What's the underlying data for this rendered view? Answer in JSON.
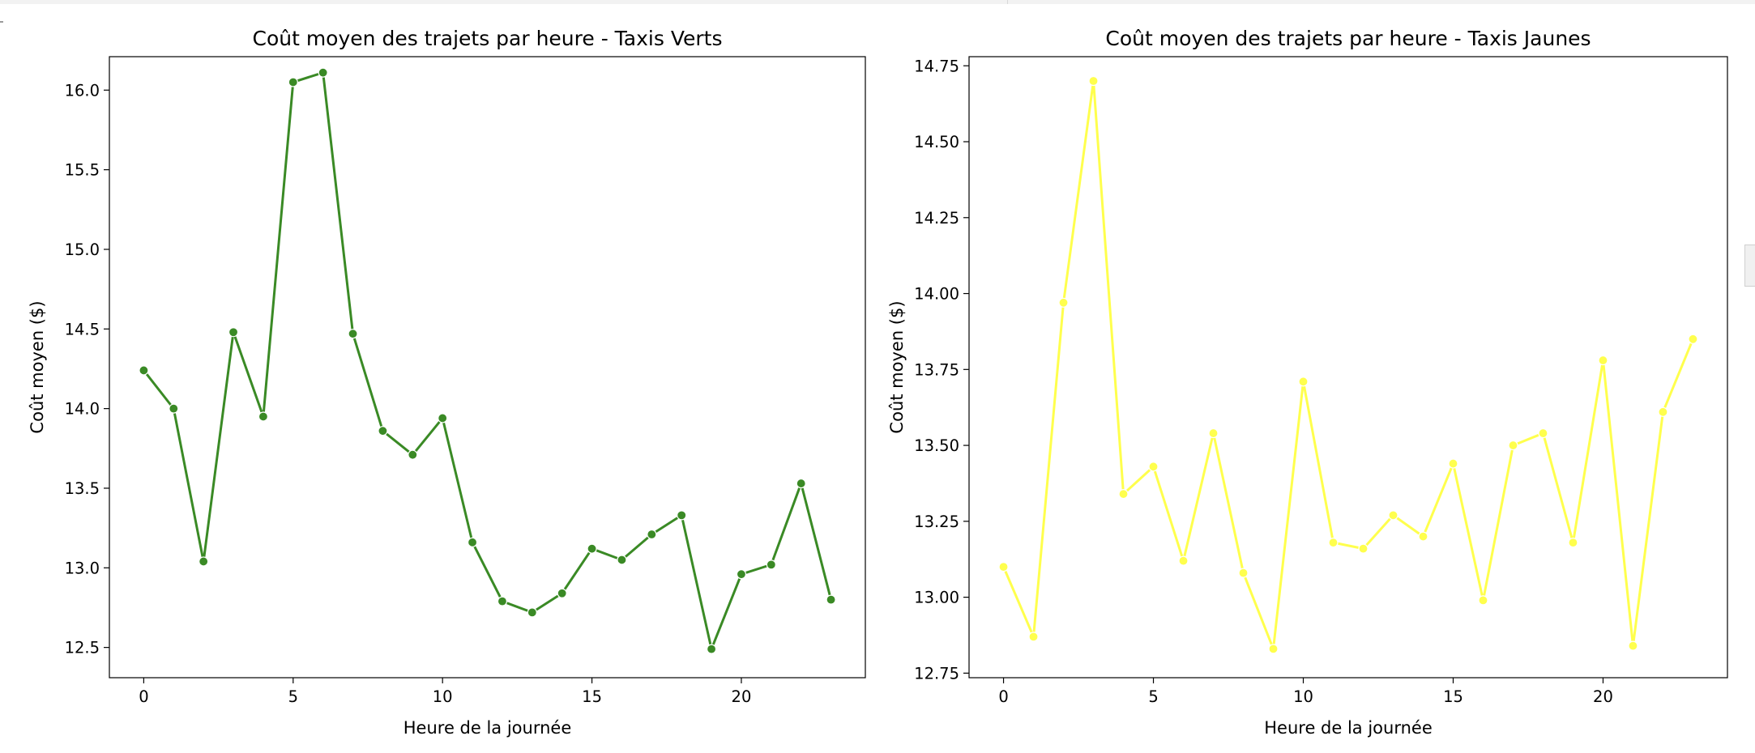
{
  "chart_data": [
    {
      "type": "line",
      "title": "Coût moyen des trajets par heure - Taxis Verts",
      "xlabel": "Heure de la journée",
      "ylabel": "Coût moyen ($)",
      "color": "#3a8a25",
      "marker": "circle",
      "grid": false,
      "xlim": [
        -1.15,
        24.15
      ],
      "ylim": [
        12.31,
        16.21
      ],
      "xticks": [
        0,
        5,
        10,
        15,
        20
      ],
      "xtick_labels": [
        "0",
        "5",
        "10",
        "15",
        "20"
      ],
      "yticks": [
        12.5,
        13.0,
        13.5,
        14.0,
        14.5,
        15.0,
        15.5,
        16.0
      ],
      "ytick_labels": [
        "12.5",
        "13.0",
        "13.5",
        "14.0",
        "14.5",
        "15.0",
        "15.5",
        "16.0"
      ],
      "x": [
        0,
        1,
        2,
        3,
        4,
        5,
        6,
        7,
        8,
        9,
        10,
        11,
        12,
        13,
        14,
        15,
        16,
        17,
        18,
        19,
        20,
        21,
        22,
        23
      ],
      "series": [
        {
          "values": [
            14.24,
            14.0,
            13.04,
            14.48,
            13.95,
            16.05,
            16.11,
            14.47,
            13.86,
            13.71,
            13.94,
            13.16,
            12.79,
            12.72,
            12.84,
            13.12,
            13.05,
            13.21,
            13.33,
            12.49,
            12.96,
            13.02,
            13.53,
            12.8
          ]
        }
      ]
    },
    {
      "type": "line",
      "title": "Coût moyen des trajets par heure - Taxis Jaunes",
      "xlabel": "Heure de la journée",
      "ylabel": "Coût moyen ($)",
      "color": "#ffff4d",
      "marker": "circle",
      "grid": false,
      "xlim": [
        -1.15,
        24.15
      ],
      "ylim": [
        12.735,
        14.78
      ],
      "xticks": [
        0,
        5,
        10,
        15,
        20
      ],
      "xtick_labels": [
        "0",
        "5",
        "10",
        "15",
        "20"
      ],
      "yticks": [
        12.75,
        13.0,
        13.25,
        13.5,
        13.75,
        14.0,
        14.25,
        14.5,
        14.75
      ],
      "ytick_labels": [
        "12.75",
        "13.00",
        "13.25",
        "13.50",
        "13.75",
        "14.00",
        "14.25",
        "14.50",
        "14.75"
      ],
      "x": [
        0,
        1,
        2,
        3,
        4,
        5,
        6,
        7,
        8,
        9,
        10,
        11,
        12,
        13,
        14,
        15,
        16,
        17,
        18,
        19,
        20,
        21,
        22,
        23
      ],
      "series": [
        {
          "values": [
            13.1,
            12.87,
            13.97,
            14.7,
            13.34,
            13.43,
            13.12,
            13.54,
            13.08,
            12.83,
            13.71,
            13.18,
            13.16,
            13.27,
            13.2,
            13.44,
            12.99,
            13.5,
            13.54,
            13.18,
            13.78,
            12.84,
            13.61,
            13.85
          ]
        }
      ]
    }
  ]
}
